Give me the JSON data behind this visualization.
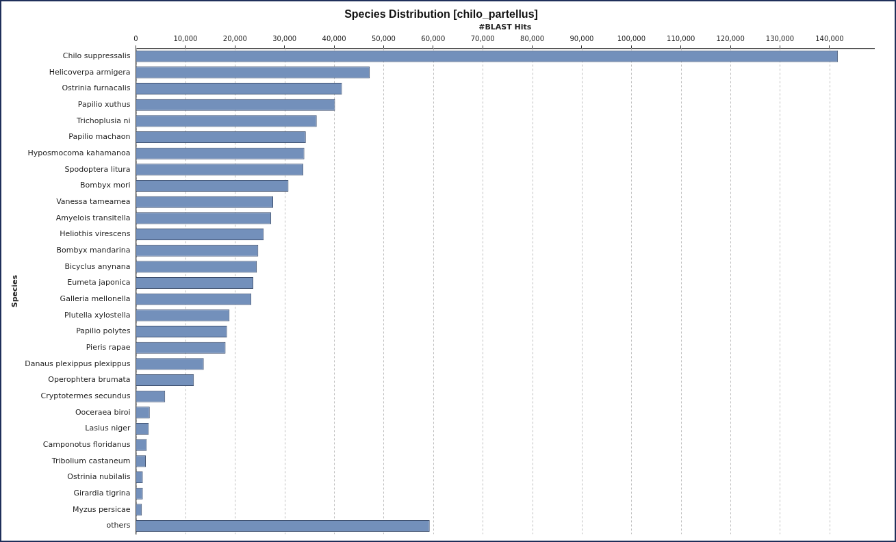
{
  "chart_data": {
    "type": "bar",
    "orientation": "horizontal",
    "title": "Species Distribution [chilo_partellus]",
    "xlabel": "#BLAST Hits",
    "ylabel": "Species",
    "categories": [
      "Chilo suppressalis",
      "Helicoverpa armigera",
      "Ostrinia furnacalis",
      "Papilio xuthus",
      "Trichoplusia ni",
      "Papilio machaon",
      "Hyposmocoma kahamanoa",
      "Spodoptera litura",
      "Bombyx mori",
      "Vanessa tameamea",
      "Amyelois transitella",
      "Heliothis virescens",
      "Bombyx mandarina",
      "Bicyclus anynana",
      "Eumeta japonica",
      "Galleria mellonella",
      "Plutella xylostella",
      "Papilio polytes",
      "Pieris rapae",
      "Danaus plexippus plexippus",
      "Operophtera brumata",
      "Cryptotermes secundus",
      "Ooceraea biroi",
      "Lasius niger",
      "Camponotus floridanus",
      "Tribolium castaneum",
      "Ostrinia nubilalis",
      "Girardia tigrina",
      "Myzus persicae",
      "others"
    ],
    "values": [
      141700,
      47200,
      41600,
      40200,
      36500,
      34300,
      34000,
      33800,
      30800,
      27700,
      27300,
      25800,
      24700,
      24400,
      23700,
      23300,
      18900,
      18400,
      18100,
      13700,
      11700,
      5900,
      2800,
      2600,
      2200,
      2000,
      1400,
      1400,
      1200,
      59300
    ],
    "color": "#7390bb",
    "xlim": [
      0,
      149000
    ],
    "xticks": [
      0,
      {
        "value": 10000,
        "label": "10,000"
      },
      {
        "value": 20000,
        "label": "20,000"
      },
      {
        "value": 30000,
        "label": "30,000"
      },
      {
        "value": 40000,
        "label": "40,000"
      },
      {
        "value": 50000,
        "label": "50,000"
      },
      {
        "value": 60000,
        "label": "60,000"
      },
      {
        "value": 70000,
        "label": "70,000"
      },
      {
        "value": 80000,
        "label": "80,000"
      },
      {
        "value": 90000,
        "label": "90,000"
      },
      {
        "value": 100000,
        "label": "100,000"
      },
      {
        "value": 110000,
        "label": "110,000"
      },
      {
        "value": 120000,
        "label": "120,000"
      },
      {
        "value": 130000,
        "label": "130,000"
      },
      {
        "value": 140000,
        "label": "140,000"
      }
    ],
    "grid": "x",
    "legend": false
  }
}
